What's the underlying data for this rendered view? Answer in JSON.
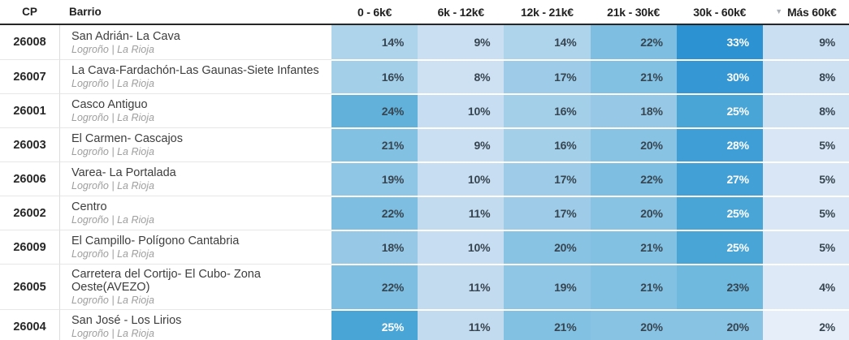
{
  "table": {
    "columns": {
      "cp_label": "CP",
      "barrio_label": "Barrio"
    },
    "bracket_columns": [
      {
        "label": "0 - 6k€"
      },
      {
        "label": "6k - 12k€"
      },
      {
        "label": "12k - 21k€"
      },
      {
        "label": "21k - 30k€"
      },
      {
        "label": "30k - 60k€"
      },
      {
        "label": "Más 60k€",
        "sorted": "desc",
        "sort_icon": "▼"
      }
    ],
    "rows": [
      {
        "cp": "26008",
        "barrio": "San Adrián- La Cava",
        "location": "Logroño | La Rioja",
        "values": [
          "14%",
          "9%",
          "14%",
          "22%",
          "33%",
          "9%"
        ]
      },
      {
        "cp": "26007",
        "barrio": "La Cava-Fardachón-Las Gaunas-Siete Infantes",
        "location": "Logroño | La Rioja",
        "values": [
          "16%",
          "8%",
          "17%",
          "21%",
          "30%",
          "8%"
        ]
      },
      {
        "cp": "26001",
        "barrio": "Casco Antiguo",
        "location": "Logroño | La Rioja",
        "values": [
          "24%",
          "10%",
          "16%",
          "18%",
          "25%",
          "8%"
        ]
      },
      {
        "cp": "26003",
        "barrio": "El Carmen- Cascajos",
        "location": "Logroño | La Rioja",
        "values": [
          "21%",
          "9%",
          "16%",
          "20%",
          "28%",
          "5%"
        ]
      },
      {
        "cp": "26006",
        "barrio": "Varea- La Portalada",
        "location": "Logroño | La Rioja",
        "values": [
          "19%",
          "10%",
          "17%",
          "22%",
          "27%",
          "5%"
        ]
      },
      {
        "cp": "26002",
        "barrio": "Centro",
        "location": "Logroño | La Rioja",
        "values": [
          "22%",
          "11%",
          "17%",
          "20%",
          "25%",
          "5%"
        ]
      },
      {
        "cp": "26009",
        "barrio": "El Campillo- Polígono Cantabria",
        "location": "Logroño | La Rioja",
        "values": [
          "18%",
          "10%",
          "20%",
          "21%",
          "25%",
          "5%"
        ]
      },
      {
        "cp": "26005",
        "barrio": "Carretera del Cortijo- El Cubo- Zona Oeste(AVEZO)",
        "location": "Logroño | La Rioja",
        "values": [
          "22%",
          "11%",
          "19%",
          "21%",
          "23%",
          "4%"
        ]
      },
      {
        "cp": "26004",
        "barrio": "San José - Los Lirios",
        "location": "Logroño | La Rioja",
        "values": [
          "25%",
          "11%",
          "21%",
          "20%",
          "20%",
          "2%"
        ]
      }
    ]
  },
  "colors": {
    "heat_scale_stops": [
      [
        0,
        "#eef4fb"
      ],
      [
        2,
        "#e6eef9"
      ],
      [
        5,
        "#d8e6f5"
      ],
      [
        9,
        "#cadff2"
      ],
      [
        11,
        "#c3dbef"
      ],
      [
        14,
        "#aed4ec"
      ],
      [
        17,
        "#9ecce8"
      ],
      [
        20,
        "#89c3e4"
      ],
      [
        22,
        "#7dbee1"
      ],
      [
        24,
        "#61b1da"
      ],
      [
        25,
        "#4aa5d7"
      ],
      [
        28,
        "#3e9ed5"
      ],
      [
        30,
        "#3597d3"
      ],
      [
        33,
        "#2d92d1"
      ]
    ],
    "white_text_threshold": 25,
    "cell_text_dark": "#374550",
    "cell_text_light": "#ffffff",
    "header_rule": "#262626",
    "sort_icon_color": "#aab1b7"
  }
}
